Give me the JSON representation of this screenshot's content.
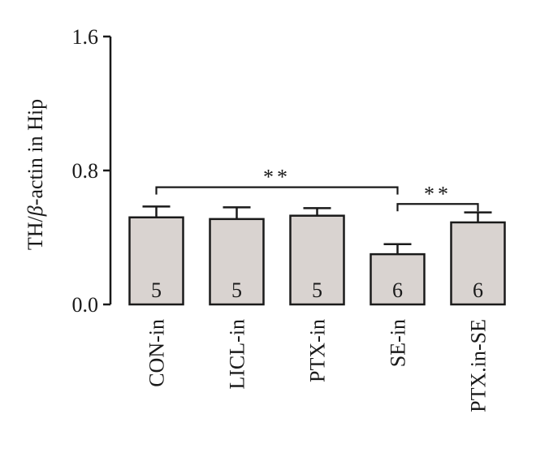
{
  "chart_data": {
    "type": "bar",
    "ylabel_prefix": "TH/",
    "ylabel_symbol": "β",
    "ylabel_suffix": "-actin in Hip",
    "ylim": [
      0,
      1.6
    ],
    "yticks": [
      "0.0",
      "0.8",
      "1.6"
    ],
    "categories": [
      "CON-in",
      "LICL-in",
      "PTX-in",
      "SE-in",
      "PTX.in-SE"
    ],
    "values": [
      0.52,
      0.51,
      0.53,
      0.3,
      0.49
    ],
    "errors": [
      0.065,
      0.07,
      0.045,
      0.06,
      0.06
    ],
    "n": [
      "5",
      "5",
      "5",
      "6",
      "6"
    ],
    "significance": [
      {
        "from": 0,
        "to": 3,
        "label": "**",
        "level": 0.7
      },
      {
        "from": 3,
        "to": 4,
        "label": "**",
        "level": 0.6
      }
    ],
    "colors": {
      "bar_fill": "#d9d3d0",
      "stroke": "#1a1a1a"
    }
  }
}
